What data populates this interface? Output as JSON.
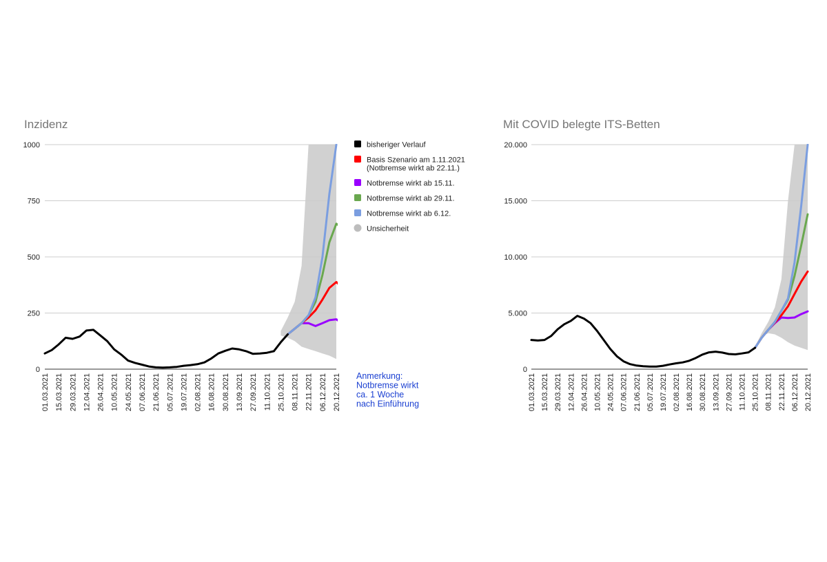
{
  "chart_data": [
    {
      "type": "line",
      "title": "Inzidenz",
      "ylim": [
        0,
        1000
      ],
      "yticks": [
        0,
        250,
        500,
        750,
        1000
      ],
      "ytick_labels": [
        "0",
        "250",
        "500",
        "750",
        "1000"
      ],
      "x_tick_labels": [
        "01.03.2021",
        "15.03.2021",
        "29.03.2021",
        "12.04.2021",
        "26.04.2021",
        "10.05.2021",
        "24.05.2021",
        "07.06.2021",
        "21.06.2021",
        "05.07.2021",
        "19.07.2021",
        "02.08.2021",
        "16.08.2021",
        "30.08.2021",
        "13.09.2021",
        "27.09.2021",
        "11.10.2021",
        "25.10.2021",
        "08.11.2021",
        "22.11.2021",
        "06.12.2021",
        "20.12.2021"
      ],
      "x_count": 43,
      "grid": true,
      "legend_position": "right",
      "legend": [
        {
          "label": "bisheriger Verlauf",
          "color": "#000000"
        },
        {
          "label": "Basis Szenario am 1.11.2021",
          "label2": "(Notbremse wirkt ab 22.11.)",
          "color": "#ff0000"
        },
        {
          "label": "Notbremse wirkt ab 15.11.",
          "color": "#9900ff"
        },
        {
          "label": "Notbremse wirkt ab 29.11.",
          "color": "#6aa84f"
        },
        {
          "label": "Notbremse wirkt ab 6.12.",
          "color": "#7b9ee0"
        },
        {
          "label": "Unsicherheit",
          "color": "#bdbdbd"
        }
      ],
      "note": [
        "Anmerkung:",
        "Notbremse wirkt",
        "ca. 1 Woche",
        "nach Einführung"
      ],
      "uncertainty": {
        "x": [
          34,
          35,
          36,
          37,
          38,
          39,
          40,
          41,
          42
        ],
        "upper": [
          170,
          230,
          300,
          460,
          1000,
          1000,
          1000,
          1000,
          1000
        ],
        "lower": [
          150,
          140,
          125,
          100,
          90,
          80,
          70,
          60,
          45
        ]
      },
      "series": [
        {
          "name": "bisheriger Verlauf",
          "color": "#000000",
          "x0": 0,
          "values": [
            70,
            85,
            110,
            140,
            135,
            145,
            172,
            175,
            150,
            125,
            88,
            65,
            38,
            28,
            20,
            12,
            8,
            7,
            8,
            10,
            15,
            18,
            22,
            30,
            48,
            70,
            82,
            92,
            88,
            80,
            68,
            70,
            73,
            80,
            120,
            155
          ]
        },
        {
          "name": "Notbremse wirkt ab 15.11.",
          "color": "#9900ff",
          "x0": 35,
          "values": [
            155,
            180,
            205,
            205,
            192,
            205,
            218,
            222,
            200
          ]
        },
        {
          "name": "Basis Szenario am 1.11.2021",
          "color": "#ff0000",
          "x0": 35,
          "values": [
            155,
            180,
            205,
            230,
            262,
            310,
            362,
            388,
            360
          ]
        },
        {
          "name": "Notbremse wirkt ab 29.11.",
          "color": "#6aa84f",
          "x0": 35,
          "values": [
            155,
            180,
            205,
            240,
            300,
            420,
            565,
            648,
            625
          ]
        },
        {
          "name": "Notbremse wirkt ab 6.12.",
          "color": "#7b9ee0",
          "x0": 35,
          "values": [
            155,
            180,
            205,
            240,
            320,
            500,
            780,
            1000
          ]
        }
      ]
    },
    {
      "type": "line",
      "title": "Mit COVID belegte ITS-Betten",
      "ylim": [
        0,
        20000
      ],
      "yticks": [
        0,
        5000,
        10000,
        15000,
        20000
      ],
      "ytick_labels": [
        "0",
        "5.000",
        "10.000",
        "15.000",
        "20.000"
      ],
      "x_tick_labels": [
        "01.03.2021",
        "15.03.2021",
        "29.03.2021",
        "12.04.2021",
        "26.04.2021",
        "10.05.2021",
        "24.05.2021",
        "07.06.2021",
        "21.06.2021",
        "05.07.2021",
        "19.07.2021",
        "02.08.2021",
        "16.08.2021",
        "30.08.2021",
        "13.09.2021",
        "27.09.2021",
        "11.10.2021",
        "25.10.2021",
        "08.11.2021",
        "22.11.2021",
        "06.12.2021",
        "20.12.2021"
      ],
      "x_count": 43,
      "grid": true,
      "uncertainty": {
        "x": [
          34,
          35,
          36,
          37,
          38,
          39,
          40,
          41,
          42
        ],
        "upper": [
          2000,
          3200,
          4200,
          5500,
          8000,
          15000,
          20000,
          20000,
          20000
        ],
        "lower": [
          1900,
          2900,
          3200,
          3100,
          2800,
          2400,
          2100,
          1900,
          1700
        ]
      },
      "series": [
        {
          "name": "bisheriger Verlauf",
          "color": "#000000",
          "x0": 0,
          "values": [
            2600,
            2550,
            2600,
            2950,
            3550,
            4000,
            4300,
            4750,
            4500,
            4100,
            3400,
            2600,
            1800,
            1150,
            700,
            450,
            320,
            260,
            230,
            230,
            300,
            420,
            520,
            600,
            750,
            1000,
            1300,
            1500,
            1560,
            1480,
            1350,
            1320,
            1400,
            1500,
            1900
          ]
        },
        {
          "name": "Notbremse wirkt ab 15.11.",
          "color": "#9900ff",
          "x0": 34,
          "values": [
            1900,
            2800,
            3500,
            4100,
            4600,
            4550,
            4600,
            4900,
            5150
          ]
        },
        {
          "name": "Basis Szenario am 1.11.2021",
          "color": "#ff0000",
          "x0": 34,
          "values": [
            1900,
            2800,
            3500,
            4150,
            4800,
            5600,
            6700,
            7800,
            8700
          ]
        },
        {
          "name": "Notbremse wirkt ab 29.11.",
          "color": "#6aa84f",
          "x0": 34,
          "values": [
            1900,
            2800,
            3500,
            4200,
            5200,
            6200,
            8300,
            11000,
            13800
          ]
        },
        {
          "name": "Notbremse wirkt ab 6.12.",
          "color": "#7b9ee0",
          "x0": 34,
          "values": [
            1900,
            2800,
            3500,
            4200,
            5200,
            6300,
            9500,
            14500,
            20000
          ]
        }
      ]
    }
  ]
}
